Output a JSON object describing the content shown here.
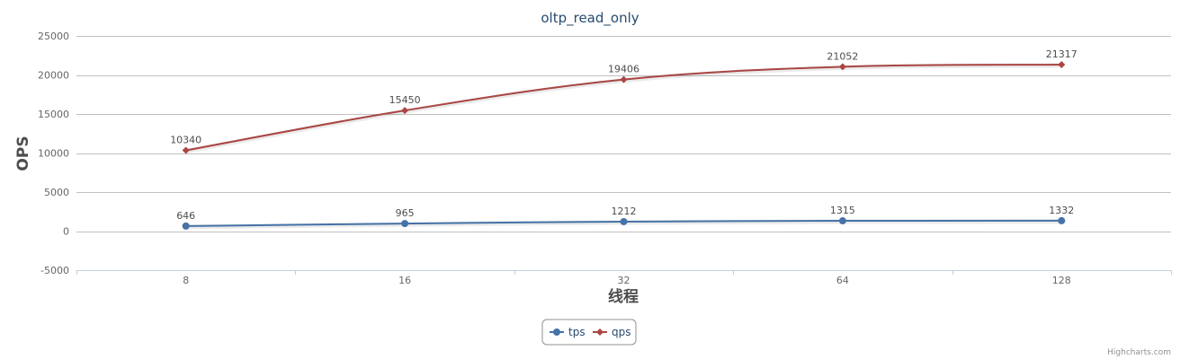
{
  "chart_data": {
    "type": "line",
    "title": "oltp_read_only",
    "xlabel": "线程",
    "ylabel": "OPS",
    "categories": [
      "8",
      "16",
      "32",
      "64",
      "128"
    ],
    "ylim": [
      -5000,
      25000
    ],
    "yticks": [
      -5000,
      0,
      5000,
      10000,
      15000,
      20000,
      25000
    ],
    "grid": true,
    "legend_position": "bottom-center",
    "series": [
      {
        "name": "tps",
        "values": [
          646,
          965,
          1212,
          1315,
          1332
        ],
        "color": "#4572a7",
        "marker": "circle"
      },
      {
        "name": "qps",
        "values": [
          10340,
          15450,
          19406,
          21052,
          21317
        ],
        "color": "#aa4643",
        "marker": "diamond"
      }
    ],
    "credit": "Highcharts.com"
  }
}
